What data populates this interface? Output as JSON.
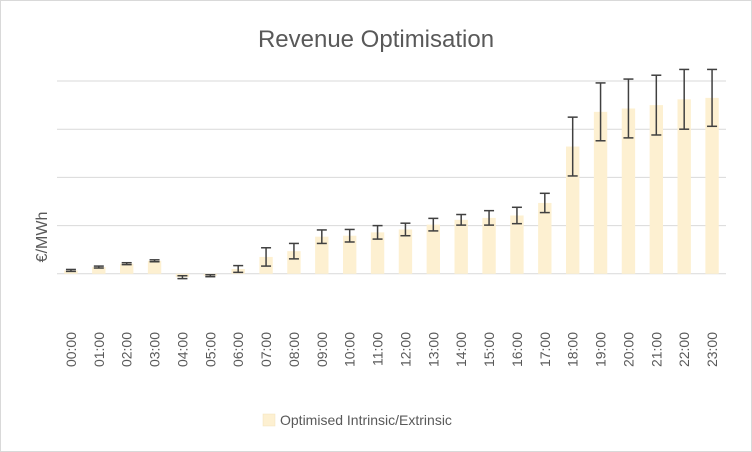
{
  "chart_data": {
    "type": "bar",
    "title": "Revenue Optimisation",
    "xlabel": "",
    "ylabel": "€/MWh",
    "ylim": [
      -1,
      4
    ],
    "y_tick_labels_shown": false,
    "grid": "horizontal",
    "legend_position": "bottom",
    "categories": [
      "00:00",
      "01:00",
      "02:00",
      "03:00",
      "04:00",
      "05:00",
      "06:00",
      "07:00",
      "08:00",
      "09:00",
      "10:00",
      "11:00",
      "12:00",
      "13:00",
      "14:00",
      "15:00",
      "16:00",
      "17:00",
      "18:00",
      "19:00",
      "20:00",
      "21:00",
      "22:00",
      "23:00"
    ],
    "series": [
      {
        "name": "Optimised Intrinsic/Extrinsic",
        "color": "#fdf0d1",
        "values": [
          0.07,
          0.14,
          0.21,
          0.27,
          -0.07,
          -0.04,
          0.1,
          0.35,
          0.47,
          0.77,
          0.79,
          0.86,
          0.92,
          1.02,
          1.12,
          1.16,
          1.21,
          1.47,
          2.64,
          3.36,
          3.43,
          3.5,
          3.62,
          3.65
        ],
        "error": [
          0.02,
          0.02,
          0.02,
          0.02,
          0.03,
          0.02,
          0.07,
          0.19,
          0.16,
          0.14,
          0.13,
          0.14,
          0.13,
          0.13,
          0.11,
          0.15,
          0.17,
          0.2,
          0.61,
          0.6,
          0.61,
          0.62,
          0.62,
          0.59
        ]
      }
    ]
  }
}
